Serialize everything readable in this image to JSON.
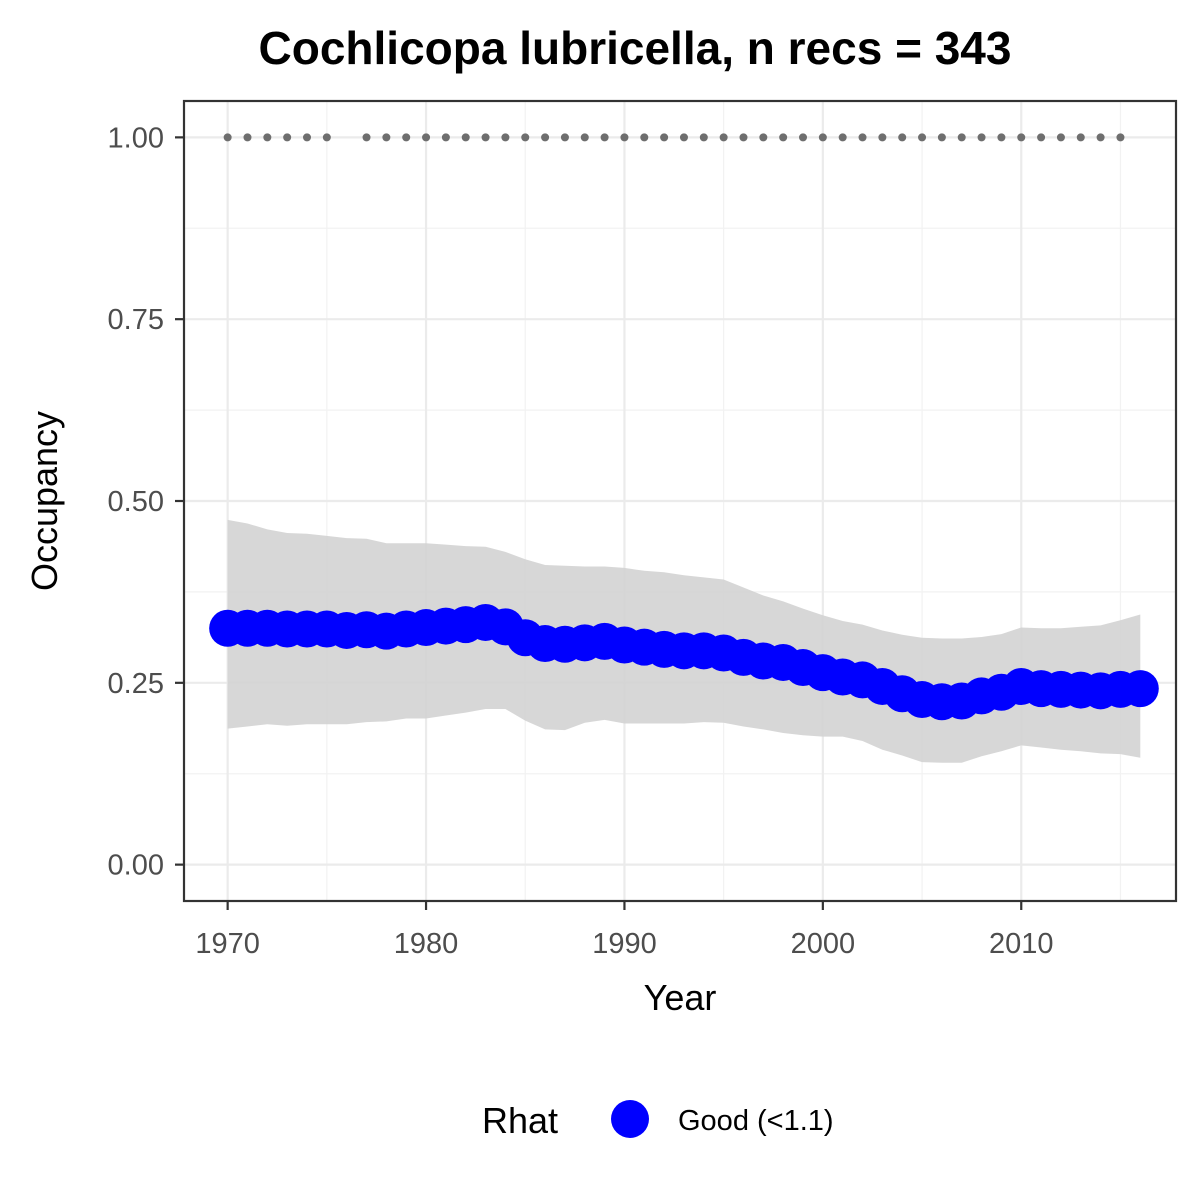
{
  "chart_data": {
    "type": "line",
    "title": "Cochlicopa lubricella, n recs = 343",
    "xlabel": "Year",
    "ylabel": "Occupancy",
    "xlim": [
      1967.8,
      2017.8
    ],
    "ylim": [
      -0.05,
      1.05
    ],
    "x_ticks": [
      1970,
      1980,
      1990,
      2000,
      2010
    ],
    "x_tick_labels": [
      "1970",
      "1980",
      "1990",
      "2000",
      "2010"
    ],
    "y_ticks": [
      0,
      0.25,
      0.5,
      0.75,
      1.0
    ],
    "y_tick_labels": [
      "0.00",
      "0.25",
      "0.50",
      "0.75",
      "1.00"
    ],
    "grid": true,
    "legend": {
      "title": "Rhat",
      "position": "bottom",
      "entries": [
        {
          "label": "Good (<1.1)",
          "color": "#0000ff"
        }
      ]
    },
    "series": [
      {
        "name": "Good (<1.1)",
        "color": "#0000ff",
        "x": [
          1970,
          1971,
          1972,
          1973,
          1974,
          1975,
          1976,
          1977,
          1978,
          1979,
          1980,
          1981,
          1982,
          1983,
          1984,
          1985,
          1986,
          1987,
          1988,
          1989,
          1990,
          1991,
          1992,
          1993,
          1994,
          1995,
          1996,
          1997,
          1998,
          1999,
          2000,
          2001,
          2002,
          2003,
          2004,
          2005,
          2006,
          2007,
          2008,
          2009,
          2010,
          2011,
          2012,
          2013,
          2014,
          2015,
          2016
        ],
        "y": [
          0.325,
          0.325,
          0.325,
          0.324,
          0.324,
          0.324,
          0.322,
          0.323,
          0.321,
          0.324,
          0.326,
          0.328,
          0.33,
          0.333,
          0.327,
          0.312,
          0.304,
          0.303,
          0.305,
          0.307,
          0.302,
          0.299,
          0.296,
          0.294,
          0.294,
          0.291,
          0.285,
          0.28,
          0.278,
          0.271,
          0.264,
          0.258,
          0.254,
          0.245,
          0.235,
          0.227,
          0.224,
          0.225,
          0.232,
          0.237,
          0.245,
          0.242,
          0.241,
          0.24,
          0.239,
          0.241,
          0.242
        ]
      }
    ],
    "credible_interval": {
      "color": "#d3d3d3",
      "x": [
        1970,
        1971,
        1972,
        1973,
        1974,
        1975,
        1976,
        1977,
        1978,
        1979,
        1980,
        1981,
        1982,
        1983,
        1984,
        1985,
        1986,
        1987,
        1988,
        1989,
        1990,
        1991,
        1992,
        1993,
        1994,
        1995,
        1996,
        1997,
        1998,
        1999,
        2000,
        2001,
        2002,
        2003,
        2004,
        2005,
        2006,
        2007,
        2008,
        2009,
        2010,
        2011,
        2012,
        2013,
        2014,
        2015,
        2016
      ],
      "lower": [
        0.187,
        0.19,
        0.193,
        0.191,
        0.193,
        0.193,
        0.193,
        0.196,
        0.197,
        0.201,
        0.201,
        0.205,
        0.209,
        0.214,
        0.214,
        0.198,
        0.186,
        0.185,
        0.195,
        0.199,
        0.194,
        0.194,
        0.194,
        0.194,
        0.196,
        0.195,
        0.19,
        0.186,
        0.181,
        0.178,
        0.176,
        0.176,
        0.17,
        0.158,
        0.15,
        0.141,
        0.14,
        0.14,
        0.149,
        0.156,
        0.164,
        0.161,
        0.158,
        0.156,
        0.153,
        0.152,
        0.147
      ],
      "upper": [
        0.474,
        0.469,
        0.461,
        0.456,
        0.455,
        0.452,
        0.449,
        0.448,
        0.442,
        0.442,
        0.442,
        0.44,
        0.438,
        0.437,
        0.43,
        0.42,
        0.412,
        0.411,
        0.41,
        0.41,
        0.408,
        0.404,
        0.402,
        0.398,
        0.395,
        0.392,
        0.381,
        0.37,
        0.362,
        0.352,
        0.343,
        0.335,
        0.33,
        0.322,
        0.316,
        0.312,
        0.311,
        0.311,
        0.313,
        0.317,
        0.326,
        0.325,
        0.325,
        0.327,
        0.329,
        0.336,
        0.344
      ]
    },
    "records": {
      "color": "#6e6e6e",
      "y": 1.0,
      "x": [
        1970,
        1971,
        1972,
        1973,
        1974,
        1975,
        1977,
        1978,
        1979,
        1980,
        1981,
        1982,
        1983,
        1984,
        1985,
        1986,
        1987,
        1988,
        1989,
        1990,
        1991,
        1992,
        1993,
        1994,
        1995,
        1996,
        1997,
        1998,
        1999,
        2000,
        2001,
        2002,
        2003,
        2004,
        2005,
        2006,
        2007,
        2008,
        2009,
        2010,
        2011,
        2012,
        2013,
        2014,
        2015
      ]
    }
  }
}
